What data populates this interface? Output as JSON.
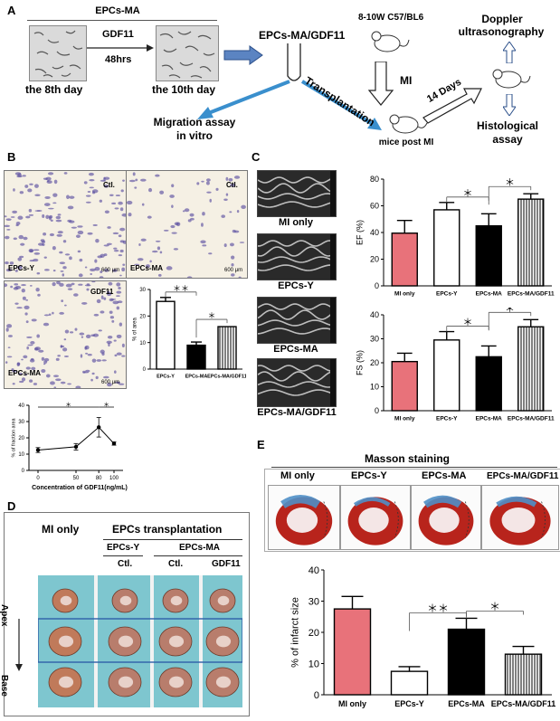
{
  "panels": {
    "a": "A",
    "b": "B",
    "c": "C",
    "d": "D",
    "e": "E"
  },
  "panel_a": {
    "header": "EPCs-MA",
    "gdf11": "GDF11",
    "hours": "48hrs",
    "day8": "the 8th day",
    "day10": "the 10th day",
    "epcs_gdf11": "EPCs-MA/GDF11",
    "mice": "8-10W C57/BL6",
    "doppler_line1": "Doppler",
    "doppler_line2": "ultrasonography",
    "transplantation": "Transplantation",
    "mi": "MI",
    "days14": "14 Days",
    "migration_line1": "Migration assay",
    "migration_line2": "in vitro",
    "mice_post": "mice post MI",
    "histo_line1": "Histological",
    "histo_line2": "assay"
  },
  "panel_b": {
    "img1_label": "EPCs-Y",
    "img1_tag": "Ctl.",
    "img2_label": "EPCs-MA",
    "img2_tag": "Ctl.",
    "img3_label": "EPCs-MA",
    "img3_tag": "GDF11",
    "scale1": "600 μm",
    "scale2": "600 μm",
    "scale3": "600 μm"
  },
  "panel_c": {
    "echo_labels": [
      "MI only",
      "EPCs-Y",
      "EPCs-MA",
      "EPCs-MA/GDF11"
    ]
  },
  "panel_d": {
    "mi_only": "MI only",
    "epcs_transplantation": "EPCs transplantation",
    "epcs_y": "EPCs-Y",
    "epcs_ma": "EPCs-MA",
    "ctl1": "Ctl.",
    "ctl2": "Ctl.",
    "gdf11": "GDF11",
    "apex": "Apex",
    "base": "Base"
  },
  "panel_e": {
    "title": "Masson staining",
    "labels": [
      "MI only",
      "EPCs-Y",
      "EPCs-MA",
      "EPCs-MA/GDF11"
    ]
  },
  "colors": {
    "red_bar": "#e8727a",
    "heart_red": "#b8241c",
    "blue_fibrosis": "#4f8fc7",
    "arrow_blue": "#3a8fcd",
    "d_bg": "#7ec6cf",
    "d_box": "#2e60a8"
  },
  "chart_data": [
    {
      "id": "b-area",
      "type": "bar",
      "categories": [
        "EPCs-Y",
        "EPCs-MA",
        "EPCs-MA/GDF11"
      ],
      "values": [
        25.5,
        9,
        16
      ],
      "errors": [
        1.5,
        1.2,
        0
      ],
      "ylabel": "% of area",
      "ylim": [
        0,
        30
      ],
      "yticks": [
        0,
        10,
        20,
        30
      ],
      "significance": [
        {
          "from": 0,
          "to": 1,
          "text": "＊＊"
        },
        {
          "from": 1,
          "to": 2,
          "text": "＊"
        }
      ]
    },
    {
      "id": "b-line",
      "type": "line",
      "x": [
        0,
        50,
        80,
        100
      ],
      "y": [
        12.5,
        14.5,
        26.5,
        16.5
      ],
      "errors": [
        1.5,
        2,
        6,
        1
      ],
      "xlabel": "Concentration of GDF11(ng/mL)",
      "ylabel": "% of fraction area",
      "ylim": [
        0,
        40
      ],
      "yticks": [
        0,
        10,
        20,
        30,
        40
      ],
      "xticks": [
        "0",
        "50",
        "80",
        "100"
      ],
      "significance": [
        {
          "from": 0,
          "to": 2,
          "text": "＊"
        },
        {
          "from": 2,
          "to": 3,
          "text": "＊"
        }
      ]
    },
    {
      "id": "c-ef",
      "type": "bar",
      "categories": [
        "MI only",
        "EPCs-Y",
        "EPCs-MA",
        "EPCs-MA/GDF11"
      ],
      "values": [
        39.5,
        57,
        45,
        65
      ],
      "errors": [
        9.5,
        5.5,
        9,
        4
      ],
      "ylabel": "EF (%)",
      "ylim": [
        0,
        80
      ],
      "yticks": [
        0,
        20,
        40,
        60,
        80
      ],
      "significance": [
        {
          "from": 1,
          "to": 2,
          "text": "＊"
        },
        {
          "from": 2,
          "to": 3,
          "text": "＊"
        }
      ]
    },
    {
      "id": "c-fs",
      "type": "bar",
      "categories": [
        "MI only",
        "EPCs-Y",
        "EPCs-MA",
        "EPCs-MA/GDF11"
      ],
      "values": [
        20.5,
        29.5,
        22.5,
        35
      ],
      "errors": [
        3.5,
        3.5,
        4.5,
        3
      ],
      "ylabel": "FS (%)",
      "ylim": [
        0,
        40
      ],
      "yticks": [
        0,
        10,
        20,
        30,
        40
      ],
      "significance": [
        {
          "from": 1,
          "to": 2,
          "text": "＊"
        },
        {
          "from": 2,
          "to": 3,
          "text": "＊"
        }
      ]
    },
    {
      "id": "e-infarct",
      "type": "bar",
      "categories": [
        "MI only",
        "EPCs-Y",
        "EPCs-MA",
        "EPCs-MA/GDF11"
      ],
      "values": [
        27.5,
        7.5,
        21,
        13
      ],
      "errors": [
        4,
        1.5,
        3.5,
        2.5
      ],
      "ylabel": "% of infarct size",
      "ylim": [
        0,
        40
      ],
      "yticks": [
        0,
        10,
        20,
        30,
        40
      ],
      "significance": [
        {
          "from": 1,
          "to": 2,
          "text": "＊＊"
        },
        {
          "from": 2,
          "to": 3,
          "text": "＊"
        }
      ]
    }
  ]
}
